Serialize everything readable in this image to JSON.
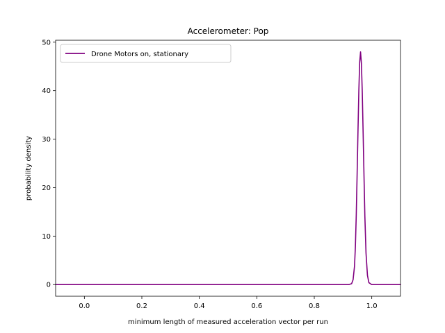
{
  "chart_data": {
    "type": "line",
    "title": "Accelerometer: Pop",
    "xlabel": "minimum length of measured acceleration vector per run",
    "ylabel": "probability density",
    "xlim": [
      -0.1,
      1.1
    ],
    "ylim": [
      -2.4,
      50.4
    ],
    "xticks": [
      0.0,
      0.2,
      0.4,
      0.6,
      0.8,
      1.0
    ],
    "xtick_labels": [
      "0.0",
      "0.2",
      "0.4",
      "0.6",
      "0.8",
      "1.0"
    ],
    "yticks": [
      0,
      10,
      20,
      30,
      40,
      50
    ],
    "ytick_labels": [
      "0",
      "10",
      "20",
      "30",
      "40",
      "50"
    ],
    "grid": false,
    "legend": "top-left",
    "series": [
      {
        "name": "Drone Motors on, stationary",
        "color": "#800080",
        "x": [
          -0.1,
          0.0,
          0.2,
          0.4,
          0.6,
          0.8,
          0.9,
          0.92,
          0.93,
          0.935,
          0.94,
          0.943,
          0.946,
          0.949,
          0.952,
          0.955,
          0.958,
          0.961,
          0.964,
          0.967,
          0.97,
          0.973,
          0.976,
          0.98,
          0.985,
          0.99,
          1.0,
          1.1
        ],
        "y": [
          0,
          0,
          0,
          0,
          0,
          0,
          0,
          0,
          0.2,
          1.0,
          3.8,
          7.8,
          14.2,
          22.6,
          31.5,
          39.9,
          45.9,
          48.0,
          45.6,
          39.6,
          31.2,
          22.4,
          14.1,
          6.5,
          1.9,
          0.4,
          0,
          0
        ]
      }
    ]
  }
}
